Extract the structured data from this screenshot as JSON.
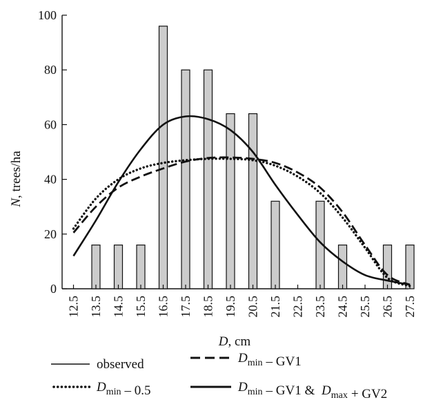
{
  "chart_data": {
    "type": "bar",
    "x_label": {
      "var": "D",
      "unit": ", cm"
    },
    "y_label": {
      "var": "N",
      "unit": ", trees/ha"
    },
    "ylim": [
      0,
      100
    ],
    "yticks": [
      0,
      20,
      40,
      60,
      80,
      100
    ],
    "categories": [
      "12.5",
      "13.5",
      "14.5",
      "15.5",
      "16.5",
      "17.5",
      "18.5",
      "19.5",
      "20.5",
      "21.5",
      "22.5",
      "23.5",
      "24.5",
      "25.5",
      "26.5",
      "27.5"
    ],
    "bar_color": "#cccccc",
    "series": [
      {
        "name": "observed",
        "kind": "bar",
        "values": [
          0,
          16,
          16,
          16,
          96,
          80,
          80,
          64,
          64,
          32,
          0,
          32,
          16,
          0,
          16,
          16
        ]
      },
      {
        "name": "Dmin – 0.5",
        "kind": "line",
        "style": "dotted",
        "x": [
          12.5,
          13.5,
          14.5,
          15.5,
          16.5,
          17.5,
          18.5,
          19.5,
          20.5,
          21.5,
          22.5,
          23.5,
          24.5,
          25.5,
          26.5,
          27.5
        ],
        "y": [
          22,
          33,
          40,
          44,
          46,
          47,
          47.5,
          47.5,
          47,
          45,
          41,
          35,
          26,
          15,
          4,
          1
        ]
      },
      {
        "name": "Dmin – GV1",
        "kind": "line",
        "style": "dashed",
        "x": [
          12.5,
          13.5,
          14.5,
          15.5,
          16.5,
          17.5,
          18.5,
          19.5,
          20.5,
          21.5,
          22.5,
          23.5,
          24.5,
          25.5,
          26.5,
          27.5
        ],
        "y": [
          20.5,
          30,
          37,
          41,
          44,
          46.5,
          47.8,
          48,
          47.5,
          46,
          42.5,
          37,
          28,
          16,
          5,
          1.5
        ]
      },
      {
        "name": "Dmin – GV1 & Dmax + GV2",
        "kind": "line",
        "style": "solid",
        "x": [
          12.5,
          13.5,
          14.5,
          15.5,
          16.5,
          17.5,
          18.5,
          19.5,
          20.5,
          21.5,
          22.5,
          23.5,
          24.5,
          25.5,
          26.5,
          27.5
        ],
        "y": [
          12,
          25,
          39,
          51,
          60,
          63,
          62,
          58,
          50,
          38,
          27,
          17,
          10,
          5,
          3,
          1.5
        ]
      }
    ],
    "legend": [
      {
        "style": "solid-thin",
        "text": "observed"
      },
      {
        "style": "dashed",
        "parts": [
          [
            "D",
            "min"
          ],
          [
            "– GV1",
            ""
          ]
        ]
      },
      {
        "style": "dotted",
        "parts": [
          [
            "D",
            "min"
          ],
          [
            "– 0.5",
            ""
          ]
        ]
      },
      {
        "style": "solid",
        "parts": [
          [
            "D",
            "min"
          ],
          [
            "– GV1 & ",
            ""
          ],
          [
            "D",
            "max"
          ],
          [
            "+ GV2",
            ""
          ]
        ]
      }
    ],
    "legend_position": "bottom",
    "grid": false
  }
}
